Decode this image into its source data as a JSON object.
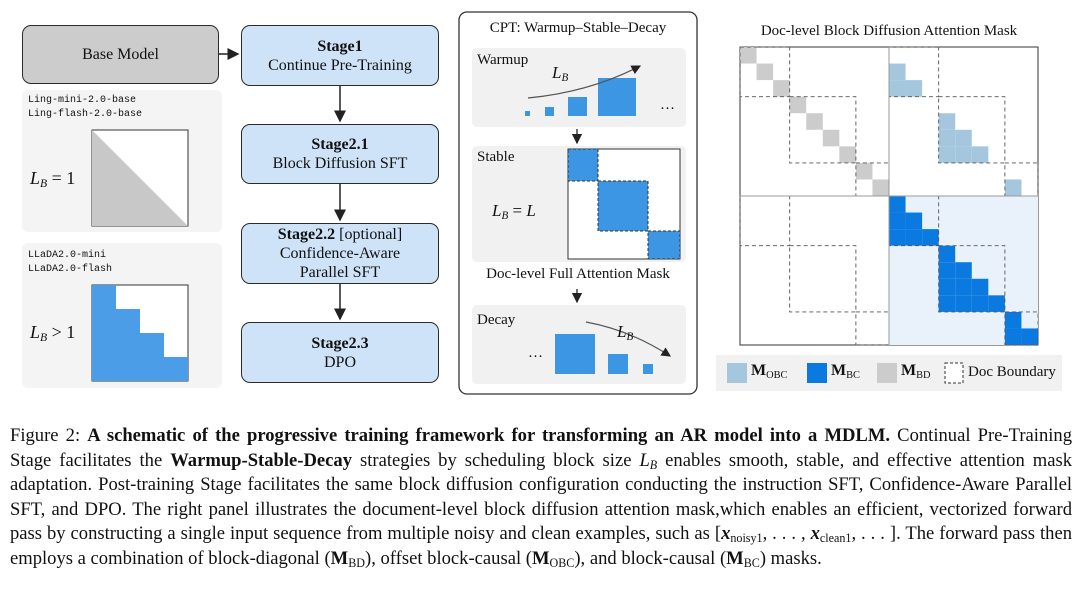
{
  "base_model": "Base Model",
  "models": [
    {
      "names": [
        "Ling-mini-2.0-base",
        "Ling-flash-2.0-base"
      ],
      "mask_label": {
        "symbol": "L",
        "subscript": "B",
        "relation": "= 1"
      }
    },
    {
      "names": [
        "LLaDA2.0-mini",
        "LLaDA2.0-flash"
      ],
      "mask_label": {
        "symbol": "L",
        "subscript": "B",
        "relation": "> 1"
      }
    }
  ],
  "stages": [
    {
      "title": "Stage1",
      "subtitle": "Continue Pre-Training"
    },
    {
      "title": "Stage2.1",
      "subtitle": "Block Diffusion SFT"
    },
    {
      "title": "Stage2.2",
      "note": "[optional]",
      "subtitle": "Confidence-Aware Parallel SFT"
    },
    {
      "title": "Stage2.3",
      "subtitle": "DPO"
    }
  ],
  "cpt": {
    "title": "CPT: Warmup–Stable–Decay",
    "warmup": {
      "label": "Warmup",
      "symbol": "L",
      "subscript": "B",
      "ellipsis": "…"
    },
    "stable": {
      "label": "Stable",
      "symbol": "L",
      "subscript": "B",
      "relation": "=",
      "rhs": "L"
    },
    "full_mask_title": "Doc-level Full Attention Mask",
    "decay": {
      "label": "Decay",
      "symbol": "L",
      "subscript": "B",
      "ellipsis": "…"
    }
  },
  "mask": {
    "title": "Doc-level Block Diffusion Attention Mask",
    "legend": [
      {
        "symbol": "M",
        "subscript": "OBC"
      },
      {
        "symbol": "M",
        "subscript": "BC"
      },
      {
        "symbol": "M",
        "subscript": "BD"
      },
      {
        "label": "Doc Boundary"
      }
    ]
  },
  "caption": {
    "label": "Figure 2:",
    "title": "A schematic of the progressive training framework for transforming an AR model into a MDLM.",
    "text": [
      "Continual Pre-Training Stage facilitates the",
      "Warmup-Stable-Decay",
      "strategies by scheduling block size",
      "enables smooth, stable, and effective attention mask adaptation. Post-training Stage facilitates the same block diffusion configuration conducting the instruction SFT, Confidence-Aware Parallel SFT, and DPO. The right panel illustrates the document-level block diffusion attention mask,which enables an efficient, vectorized forward pass by constructing a single input sequence from multiple noisy and clean examples, such as",
      ". The forward pass then employs a combination of block-diagonal (",
      "), offset block-causal (",
      "), and block-causal (",
      ") masks."
    ],
    "math": {
      "block_size": {
        "symbol": "L",
        "subscript": "B"
      },
      "sequence": {
        "open": "[",
        "symbol": "x",
        "sub1": "noisy1",
        "sep": ", . . . , ",
        "sub2": "clean1",
        "close": ", . . . ]"
      },
      "masks": [
        {
          "symbol": "M",
          "subscript": "BD"
        },
        {
          "symbol": "M",
          "subscript": "OBC"
        },
        {
          "symbol": "M",
          "subscript": "BC"
        }
      ]
    }
  }
}
